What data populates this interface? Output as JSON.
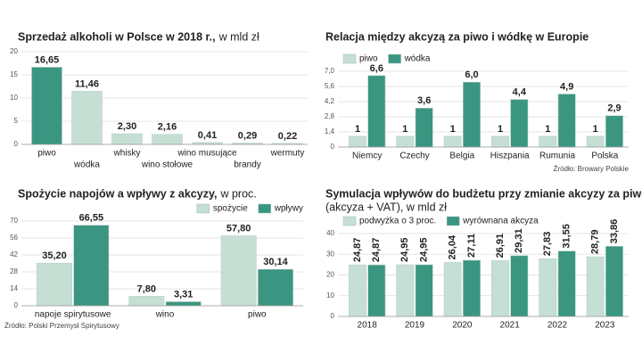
{
  "chart_data": [
    {
      "type": "bar",
      "title": "Sprzedaż alkoholi w Polsce w 2018 r.,",
      "subtitle": "w mld zł",
      "categories": [
        "piwo",
        "wódka",
        "whisky",
        "wino stołowe",
        "wino musujące",
        "brandy",
        "wermuty"
      ],
      "values": [
        16.65,
        11.46,
        2.3,
        2.16,
        0.41,
        0.29,
        0.22
      ],
      "value_labels": [
        "16,65",
        "11,46",
        "2,30",
        "2,16",
        "0,41",
        "0,29",
        "0,22"
      ],
      "colors": [
        "#3a9681",
        "#c6dfd4",
        "#c6dfd4",
        "#c6dfd4",
        "#c6dfd4",
        "#c6dfd4",
        "#c6dfd4"
      ],
      "ylim": [
        0,
        20
      ],
      "yticks": [
        0,
        5,
        10,
        15,
        20
      ],
      "grid": true
    },
    {
      "type": "bar",
      "title": "Relacja między akcyzą za piwo i wódkę w Europie",
      "categories": [
        "Niemcy",
        "Czechy",
        "Belgia",
        "Hiszpania",
        "Rumunia",
        "Polska"
      ],
      "series": [
        {
          "name": "piwo",
          "color": "#c6dfd4",
          "values": [
            1,
            1,
            1,
            1,
            1,
            1
          ]
        },
        {
          "name": "wódka",
          "color": "#3a9681",
          "values": [
            6.6,
            3.6,
            6.0,
            4.4,
            4.9,
            2.9
          ],
          "value_labels": [
            "6,6",
            "3,6",
            "6,0",
            "4,4",
            "4,9",
            "2,9"
          ]
        }
      ],
      "ylim": [
        0,
        7
      ],
      "yticks": [
        0,
        {
          "value": 1.4,
          "label": "1,4"
        },
        {
          "value": 2.8,
          "label": "2,8"
        },
        {
          "value": 4.2,
          "label": "4,2"
        },
        {
          "value": 5.6,
          "label": "5,6"
        },
        {
          "value": 7,
          "label": "7,0"
        }
      ],
      "grid": true,
      "legend": "top-left",
      "source": "Źródło: Browary Polskie"
    },
    {
      "type": "bar",
      "title": "Spożycie napojów a wpływy z akcyzy,",
      "subtitle": "w proc.",
      "categories": [
        "napoje spirytusowe",
        "wino",
        "piwo"
      ],
      "series": [
        {
          "name": "spożycie",
          "color": "#c6dfd4",
          "values": [
            35.2,
            7.8,
            57.8
          ],
          "value_labels": [
            "35,20",
            "7,80",
            "57,80"
          ]
        },
        {
          "name": "wpływy",
          "color": "#3a9681",
          "values": [
            66.55,
            3.31,
            30.14
          ],
          "value_labels": [
            "66,55",
            "3,31",
            "30,14"
          ]
        }
      ],
      "ylim": [
        0,
        70
      ],
      "yticks": [
        0,
        14,
        28,
        42,
        56,
        70
      ],
      "grid": true,
      "legend": "top-right",
      "source": "Źródło: Polski Przemysł Spirytusowy"
    },
    {
      "type": "bar",
      "title": "Symulacja wpływów do budżetu przy zmianie akcyzy za piwo,",
      "subtitle": "(akcyza + VAT), w mld zł",
      "categories": [
        "2018",
        "2019",
        "2020",
        "2021",
        "2022",
        "2023"
      ],
      "series": [
        {
          "name": "podwyżka o 3 proc.",
          "color": "#c6dfd4",
          "values": [
            24.87,
            24.95,
            26.04,
            26.91,
            27.83,
            28.79
          ],
          "value_labels": [
            "24,87",
            "24,95",
            "26,04",
            "26,91",
            "27,83",
            "28,79"
          ]
        },
        {
          "name": "wyrównana akcyza",
          "color": "#3a9681",
          "values": [
            24.87,
            24.95,
            27.11,
            29.31,
            31.55,
            33.86
          ],
          "value_labels": [
            "24,87",
            "24,95",
            "27,11",
            "29,31",
            "31,55",
            "33,86"
          ]
        }
      ],
      "ylim": [
        0,
        40
      ],
      "yticks": [
        0,
        10,
        20,
        30,
        40
      ],
      "grid": true,
      "legend": "top-left"
    }
  ]
}
